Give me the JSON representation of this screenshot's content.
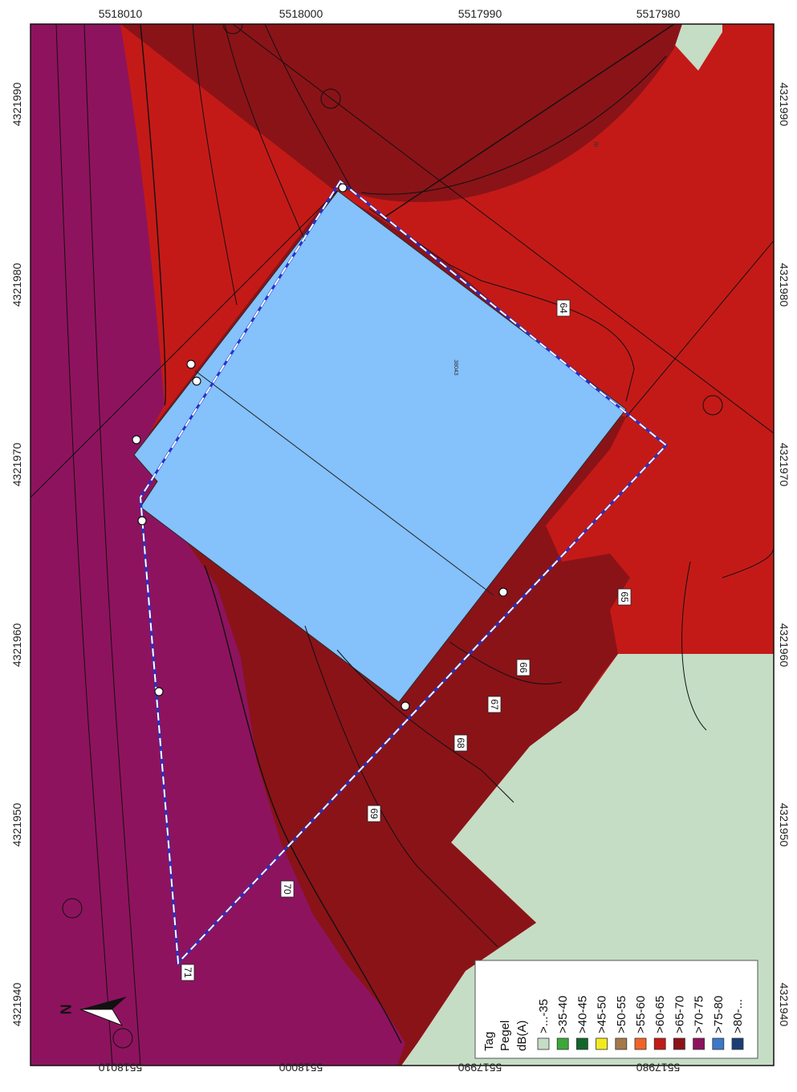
{
  "axes": {
    "top_ticks": [
      "5518010",
      "5518000",
      "5517990",
      "5517980"
    ],
    "bottom_ticks": [
      "5518010",
      "5518000",
      "5517990",
      "5517980"
    ],
    "left_ticks": [
      "4321990",
      "4321980",
      "4321970",
      "4321960",
      "4321950",
      "4321940"
    ],
    "right_ticks": [
      "4321990",
      "4321980",
      "4321970",
      "4321960",
      "4321950",
      "4321940"
    ]
  },
  "contour_labels": [
    "64",
    "65",
    "66",
    "67",
    "68",
    "69",
    "70",
    "71"
  ],
  "building_label": "38043",
  "small_label": "Ib",
  "north_label": "N",
  "legend": {
    "title": "Tag",
    "subtitle": "Pegel",
    "unit": "dB(A)",
    "classes": [
      {
        "label": ">...-35",
        "color": "#c5ddc5"
      },
      {
        "label": ">35-40",
        "color": "#3da83a"
      },
      {
        "label": ">40-45",
        "color": "#12662a"
      },
      {
        "label": ">45-50",
        "color": "#f2ea20"
      },
      {
        "label": ">50-55",
        "color": "#a5784a"
      },
      {
        "label": ">55-60",
        "color": "#f0642a"
      },
      {
        "label": ">60-65",
        "color": "#c41a17"
      },
      {
        "label": ">65-70",
        "color": "#8a1318"
      },
      {
        "label": ">70-75",
        "color": "#8e135e"
      },
      {
        "label": ">75-80",
        "color": "#3c78c8"
      },
      {
        "label": ">80-...",
        "color": "#1a3e74"
      }
    ]
  },
  "colors": {
    "zone_70_75": "#8e135e",
    "zone_65_70": "#8a1318",
    "zone_60_65": "#c41a17",
    "zone_low": "#c5ddc5",
    "building": "#85c1fb",
    "site_outline_blue": "#2233cc",
    "site_outline_white": "#ffffff"
  }
}
